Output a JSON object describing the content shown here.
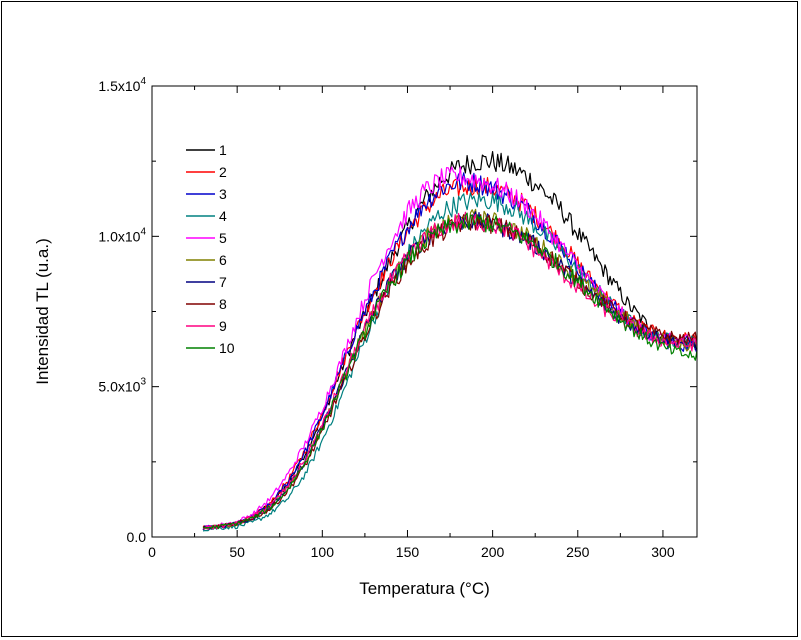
{
  "chart_data": {
    "type": "line",
    "xlabel": "Temperatura (°C)",
    "ylabel": "Intensidad TL (u.a.)",
    "xlim": [
      0,
      320
    ],
    "ylim": [
      0,
      15000
    ],
    "x_ticks": [
      0,
      50,
      100,
      150,
      200,
      250,
      300
    ],
    "y_ticks": [
      {
        "value": 0,
        "mantissa": "0.0",
        "exp": ""
      },
      {
        "value": 5000,
        "mantissa": "5.0x10",
        "exp": "3"
      },
      {
        "value": 10000,
        "mantissa": "1.0x10",
        "exp": "4"
      },
      {
        "value": 15000,
        "mantissa": "1.5x10",
        "exp": "4"
      }
    ],
    "grid": false,
    "legend_position": "top-left",
    "x": [
      30,
      40,
      50,
      60,
      70,
      80,
      90,
      100,
      110,
      120,
      130,
      140,
      150,
      160,
      170,
      180,
      190,
      200,
      210,
      220,
      230,
      240,
      250,
      260,
      270,
      280,
      290,
      300,
      310,
      320
    ],
    "series": [
      {
        "name": "1",
        "color": "#000000",
        "values": [
          300,
          350,
          450,
          700,
          1100,
          1800,
          2800,
          4000,
          5400,
          6800,
          8000,
          9200,
          10300,
          11200,
          11900,
          12300,
          12500,
          12500,
          12300,
          12000,
          11500,
          10900,
          10100,
          9300,
          8500,
          7700,
          7100,
          6700,
          6500,
          6400
        ]
      },
      {
        "name": "2",
        "color": "#ff0000",
        "values": [
          300,
          350,
          450,
          700,
          1150,
          1900,
          2900,
          4100,
          5500,
          6900,
          8100,
          9200,
          10200,
          10900,
          11400,
          11600,
          11700,
          11600,
          11400,
          11000,
          10400,
          9800,
          9100,
          8400,
          7800,
          7300,
          6900,
          6700,
          6600,
          6600
        ]
      },
      {
        "name": "3",
        "color": "#0000cc",
        "values": [
          300,
          350,
          450,
          700,
          1100,
          1850,
          2850,
          4050,
          5450,
          6900,
          8100,
          9300,
          10300,
          11100,
          11600,
          11800,
          11800,
          11600,
          11300,
          10900,
          10300,
          9700,
          9000,
          8300,
          7700,
          7200,
          6800,
          6500,
          6400,
          6300
        ]
      },
      {
        "name": "4",
        "color": "#008080",
        "values": [
          250,
          300,
          350,
          500,
          800,
          1300,
          2100,
          3200,
          4500,
          5900,
          7200,
          8400,
          9400,
          10200,
          10800,
          11100,
          11200,
          11200,
          11000,
          10600,
          10100,
          9500,
          8900,
          8300,
          7700,
          7200,
          6800,
          6600,
          6500,
          6500
        ]
      },
      {
        "name": "5",
        "color": "#ff00ff",
        "values": [
          300,
          400,
          500,
          800,
          1300,
          2100,
          3100,
          4300,
          5700,
          7200,
          8600,
          9800,
          10800,
          11500,
          11900,
          12000,
          11900,
          11700,
          11400,
          11000,
          10400,
          9700,
          9000,
          8300,
          7700,
          7200,
          6800,
          6600,
          6500,
          6500
        ]
      },
      {
        "name": "6",
        "color": "#808000",
        "values": [
          300,
          350,
          450,
          650,
          1000,
          1650,
          2550,
          3650,
          4950,
          6300,
          7500,
          8500,
          9300,
          9900,
          10300,
          10500,
          10600,
          10500,
          10300,
          10000,
          9600,
          9100,
          8600,
          8100,
          7600,
          7200,
          6800,
          6600,
          6400,
          6300
        ]
      },
      {
        "name": "7",
        "color": "#000080",
        "values": [
          300,
          350,
          450,
          650,
          1000,
          1650,
          2550,
          3650,
          4950,
          6300,
          7500,
          8500,
          9300,
          9900,
          10300,
          10500,
          10500,
          10400,
          10200,
          9900,
          9500,
          9000,
          8500,
          8000,
          7500,
          7100,
          6800,
          6600,
          6500,
          6400
        ]
      },
      {
        "name": "8",
        "color": "#800000",
        "values": [
          300,
          350,
          450,
          650,
          950,
          1550,
          2400,
          3500,
          4800,
          6100,
          7300,
          8300,
          9100,
          9700,
          10100,
          10400,
          10500,
          10400,
          10200,
          9900,
          9500,
          9000,
          8500,
          8000,
          7600,
          7200,
          6900,
          6700,
          6600,
          6600
        ]
      },
      {
        "name": "9",
        "color": "#ff0080",
        "values": [
          300,
          350,
          450,
          700,
          1050,
          1700,
          2600,
          3700,
          5000,
          6300,
          7500,
          8500,
          9300,
          9900,
          10300,
          10500,
          10500,
          10400,
          10200,
          9800,
          9300,
          8800,
          8300,
          7800,
          7400,
          7000,
          6700,
          6500,
          6400,
          6400
        ]
      },
      {
        "name": "10",
        "color": "#008000",
        "values": [
          300,
          350,
          450,
          650,
          1000,
          1600,
          2500,
          3600,
          4900,
          6200,
          7400,
          8400,
          9200,
          9800,
          10200,
          10400,
          10500,
          10400,
          10200,
          9900,
          9500,
          9000,
          8500,
          8000,
          7500,
          7000,
          6600,
          6300,
          6100,
          6000
        ]
      }
    ]
  }
}
